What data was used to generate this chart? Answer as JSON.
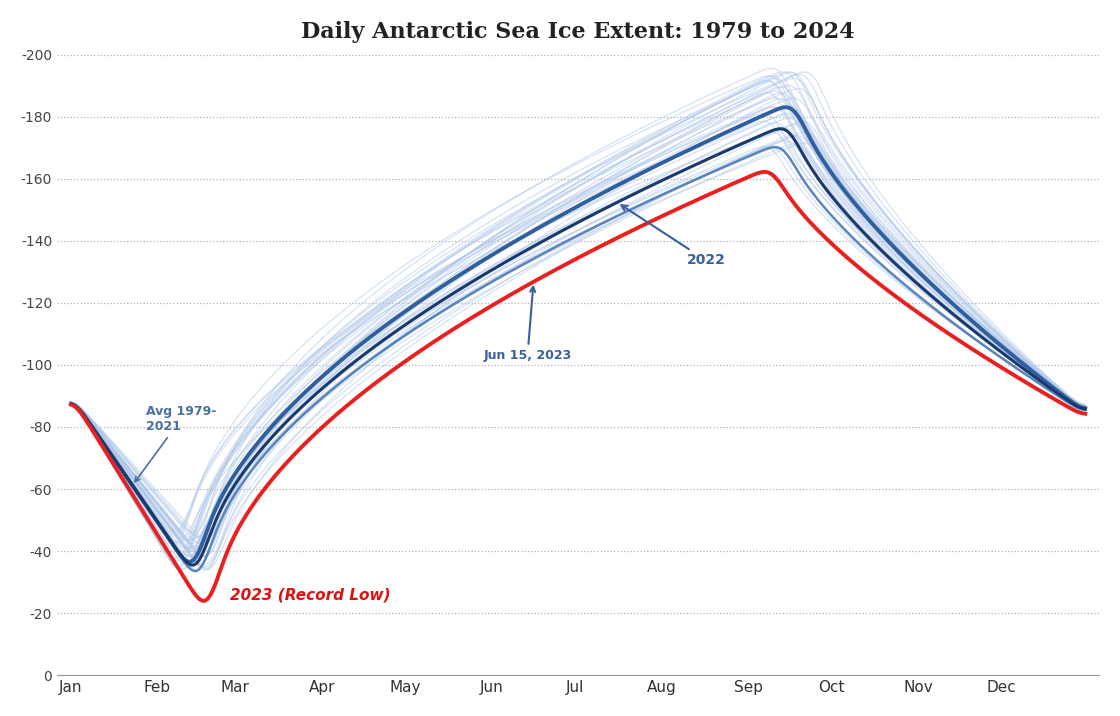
{
  "title": "Daily Antarctic Sea Ice Extent: 1979 to 2024",
  "background_color": "#ffffff",
  "plot_bg_color": "#ffffff",
  "ylim": [
    0,
    20
  ],
  "yticks": [
    0,
    2,
    4,
    6,
    8,
    10,
    12,
    14,
    16,
    18,
    20
  ],
  "ytick_labels": [
    "0",
    "-20",
    "-40",
    "-60",
    "-80",
    "-100",
    "-120",
    "-140",
    "-160",
    "-180",
    "-200"
  ],
  "months": [
    "Jan",
    "Feb",
    "Mar",
    "Apr",
    "May",
    "Jun",
    "Jul",
    "Aug",
    "Sep",
    "Oct",
    "Nov",
    "Dec"
  ],
  "historical_color": "#aec6e8",
  "avg_color": "#2f5f9e",
  "year2022_color": "#1a3a6e",
  "year2023_color": "#e82020",
  "annotation_2022": "2022",
  "annotation_2023_text": "Jun 15, 2023",
  "record_low_label": "2023 (Record Low)",
  "avg_label": "Avg 1979-\n2021"
}
